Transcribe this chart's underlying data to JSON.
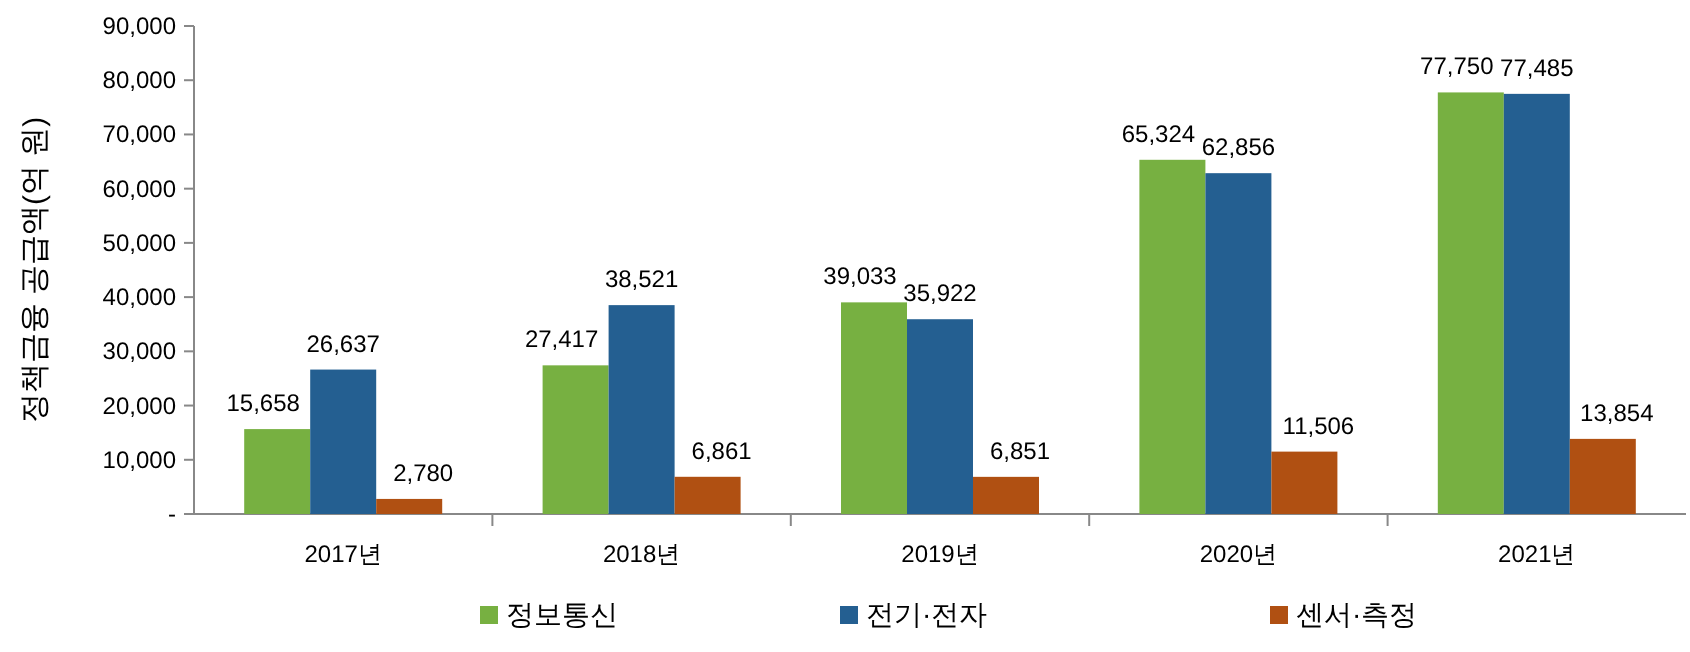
{
  "chart_data": {
    "type": "bar",
    "ylabel": "정책금융 공급액(억 원)",
    "categories": [
      "2017년",
      "2018년",
      "2019년",
      "2020년",
      "2021년"
    ],
    "series": [
      {
        "name": "정보통신",
        "color": "#77b041",
        "values": [
          15658,
          27417,
          39033,
          65324,
          77750
        ],
        "value_labels": [
          "15,658",
          "27,417",
          "39,033",
          "65,324",
          "77,750"
        ]
      },
      {
        "name": "전기·전자",
        "color": "#245f91",
        "values": [
          26637,
          38521,
          35922,
          62856,
          77485
        ],
        "value_labels": [
          "26,637",
          "38,521",
          "35,922",
          "62,856",
          "77,485"
        ]
      },
      {
        "name": "센서·측정",
        "color": "#b05012",
        "values": [
          2780,
          6861,
          6851,
          11506,
          13854
        ],
        "value_labels": [
          "2,780",
          "6,861",
          "6,851",
          "11,506",
          "13,854"
        ]
      }
    ],
    "ylim": [
      0,
      90000
    ],
    "yticks": [
      {
        "value": 0,
        "label": "-"
      },
      {
        "value": 10000,
        "label": "10,000"
      },
      {
        "value": 20000,
        "label": "20,000"
      },
      {
        "value": 30000,
        "label": "30,000"
      },
      {
        "value": 40000,
        "label": "40,000"
      },
      {
        "value": 50000,
        "label": "50,000"
      },
      {
        "value": 60000,
        "label": "60,000"
      },
      {
        "value": 70000,
        "label": "70,000"
      },
      {
        "value": 80000,
        "label": "80,000"
      },
      {
        "value": 90000,
        "label": "90,000"
      }
    ],
    "legend": "bottom"
  }
}
